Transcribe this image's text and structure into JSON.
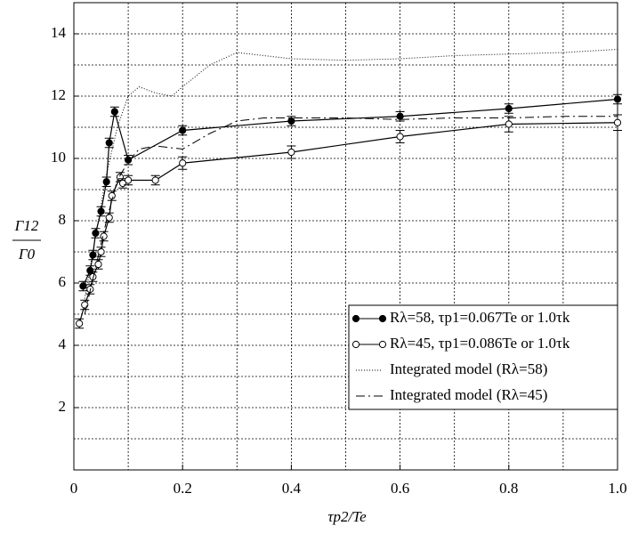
{
  "chart_data": {
    "type": "line",
    "xlabel": "τp2/Te",
    "ylabel_numerator": "Γ12",
    "ylabel_denominator": "Γ0",
    "xlim": [
      0,
      1
    ],
    "ylim": [
      0,
      15
    ],
    "xticks": [
      0,
      0.2,
      0.4,
      0.6,
      0.8,
      {
        "value": 1,
        "label": "1.0"
      }
    ],
    "yticks": [
      2,
      4,
      6,
      8,
      10,
      12,
      14
    ],
    "grid": true,
    "legend": "lower right",
    "series": [
      {
        "name": "Rλ=58, τp1=0.067Te or 1.0τk",
        "color": "#000000",
        "marker": "filled",
        "dash": "solid",
        "x": [
          0.017,
          0.03,
          0.035,
          0.04,
          0.05,
          0.06,
          0.065,
          0.075,
          0.1,
          0.2,
          0.4,
          0.6,
          0.8,
          1.0
        ],
        "values": [
          5.9,
          6.4,
          6.9,
          7.6,
          8.3,
          9.25,
          10.5,
          11.5,
          9.95,
          10.9,
          11.2,
          11.35,
          11.6,
          11.9
        ],
        "errors": [
          0.15,
          0.15,
          0.15,
          0.15,
          0.15,
          0.15,
          0.15,
          0.15,
          0.15,
          0.15,
          0.15,
          0.15,
          0.15,
          0.15
        ]
      },
      {
        "name": "Rλ=45, τp1=0.086Te or 1.0τk",
        "color": "#000000",
        "marker": "open",
        "dash": "solid",
        "x": [
          0.01,
          0.02,
          0.03,
          0.035,
          0.045,
          0.05,
          0.055,
          0.065,
          0.07,
          0.085,
          0.09,
          0.1,
          0.15,
          0.2,
          0.4,
          0.6,
          0.8,
          1.0
        ],
        "values": [
          4.7,
          5.3,
          5.8,
          6.2,
          6.6,
          7.0,
          7.5,
          8.1,
          8.8,
          9.4,
          9.2,
          9.3,
          9.3,
          9.85,
          10.2,
          10.7,
          11.1,
          11.15
        ],
        "errors": [
          0.15,
          0.15,
          0.15,
          0.15,
          0.15,
          0.15,
          0.15,
          0.15,
          0.15,
          0.15,
          0.15,
          0.15,
          0.15,
          0.2,
          0.2,
          0.2,
          0.25,
          0.25
        ]
      },
      {
        "name": "Integrated model (Rλ=58)",
        "color": "#000000",
        "marker": "none",
        "dash": "dotted",
        "x": [
          0.02,
          0.04,
          0.06,
          0.08,
          0.1,
          0.12,
          0.15,
          0.18,
          0.2,
          0.25,
          0.3,
          0.35,
          0.4,
          0.5,
          0.6,
          0.7,
          0.8,
          0.9,
          1.0
        ],
        "values": [
          5.5,
          7.5,
          9.5,
          11,
          12,
          12.3,
          12.1,
          12.0,
          12.3,
          13.0,
          13.4,
          13.3,
          13.2,
          13.15,
          13.2,
          13.3,
          13.35,
          13.4,
          13.5
        ]
      },
      {
        "name": "Integrated model (Rλ=45)",
        "color": "#000000",
        "marker": "none",
        "dash": "dashdot",
        "x": [
          0.02,
          0.04,
          0.06,
          0.08,
          0.1,
          0.12,
          0.15,
          0.2,
          0.25,
          0.3,
          0.35,
          0.4,
          0.5,
          0.6,
          0.7,
          0.8,
          0.9,
          1.0
        ],
        "values": [
          5.0,
          6.5,
          8.0,
          9.3,
          9.9,
          10.3,
          10.4,
          10.3,
          10.8,
          11.2,
          11.3,
          11.3,
          11.3,
          11.25,
          11.3,
          11.3,
          11.35,
          11.35
        ]
      }
    ]
  }
}
